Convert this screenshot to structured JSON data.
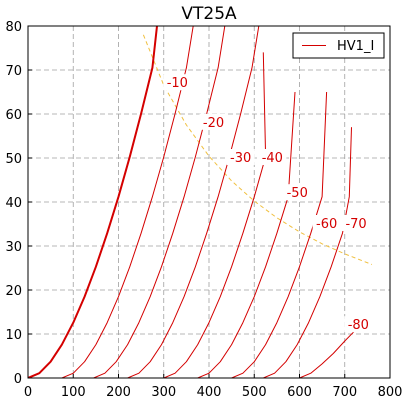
{
  "chart_data": {
    "type": "line",
    "title": "VT25A",
    "xlabel": "",
    "ylabel": "",
    "xlim": [
      0,
      800
    ],
    "ylim": [
      0,
      80
    ],
    "xticks": [
      0,
      100,
      200,
      300,
      400,
      500,
      600,
      700,
      800
    ],
    "yticks": [
      0,
      10,
      20,
      30,
      40,
      50,
      60,
      70,
      80
    ],
    "grid": true,
    "legend": {
      "placement": "top-right",
      "entries": [
        "HV1_I"
      ]
    },
    "colors": {
      "curves": "#d40000",
      "load_line": "#f0c040",
      "grid": "#a0a0a0"
    },
    "series": [
      {
        "grid_voltage": 0,
        "label": "",
        "x": [
          0,
          25,
          50,
          75,
          100,
          125,
          150,
          175,
          200,
          225,
          250,
          275,
          285
        ],
        "y": [
          0,
          1.1,
          3.7,
          7.6,
          12.6,
          18.5,
          25.3,
          32.9,
          41.2,
          50.3,
          60.1,
          70.5,
          80
        ]
      },
      {
        "grid_voltage": -10,
        "label": "-10",
        "x": [
          75,
          100,
          125,
          150,
          175,
          200,
          225,
          250,
          275,
          300,
          325,
          350,
          365
        ],
        "y": [
          0,
          1.1,
          3.7,
          7.6,
          12.6,
          18.5,
          25.3,
          32.9,
          41.2,
          50.3,
          60.1,
          70.5,
          80
        ]
      },
      {
        "grid_voltage": -20,
        "label": "-20",
        "x": [
          145,
          170,
          195,
          220,
          245,
          270,
          295,
          320,
          345,
          370,
          395,
          420,
          435
        ],
        "y": [
          0,
          1.1,
          3.7,
          7.6,
          12.6,
          18.5,
          25.3,
          32.9,
          41.2,
          50.3,
          60.1,
          70.5,
          80
        ]
      },
      {
        "grid_voltage": -30,
        "label": "-30",
        "x": [
          220,
          245,
          270,
          295,
          320,
          345,
          370,
          395,
          420,
          445,
          470,
          495,
          510
        ],
        "y": [
          0,
          1.1,
          3.7,
          7.6,
          12.6,
          18.5,
          25.3,
          32.9,
          41.2,
          50.3,
          60.1,
          70.5,
          80
        ]
      },
      {
        "grid_voltage": -40,
        "label": "-40",
        "x": [
          300,
          325,
          350,
          375,
          400,
          425,
          450,
          475,
          500,
          525,
          520
        ],
        "y": [
          0,
          1.1,
          3.7,
          7.6,
          12.6,
          18.5,
          25.3,
          32.9,
          41.2,
          50.3,
          74
        ]
      },
      {
        "grid_voltage": -50,
        "label": "-50",
        "x": [
          375,
          400,
          425,
          450,
          475,
          500,
          525,
          550,
          575,
          590
        ],
        "y": [
          0,
          1.1,
          3.7,
          7.6,
          12.6,
          18.5,
          25.3,
          32.9,
          41.2,
          65
        ]
      },
      {
        "grid_voltage": -60,
        "label": "-60",
        "x": [
          450,
          475,
          500,
          525,
          550,
          575,
          600,
          625,
          650,
          660
        ],
        "y": [
          0,
          1.1,
          3.7,
          7.6,
          12.6,
          18.5,
          25.3,
          32.9,
          41.2,
          65
        ]
      },
      {
        "grid_voltage": -70,
        "label": "-70",
        "x": [
          520,
          545,
          570,
          595,
          620,
          645,
          670,
          695,
          710,
          715
        ],
        "y": [
          0,
          1.1,
          3.7,
          7.6,
          12.6,
          18.5,
          25.3,
          32.9,
          41.2,
          57
        ]
      },
      {
        "grid_voltage": -80,
        "label": "-80",
        "x": [
          600,
          625,
          650,
          675,
          700,
          720
        ],
        "y": [
          0,
          1.1,
          3.2,
          5.6,
          8.4,
          10.5
        ]
      }
    ],
    "load_line": {
      "x": [
        255,
        300,
        350,
        400,
        450,
        500,
        550,
        600,
        650,
        700,
        760
      ],
      "y": [
        78,
        66.5,
        57.5,
        50.4,
        44.8,
        40.2,
        36.4,
        33.2,
        30.5,
        28.2,
        25.8
      ]
    }
  }
}
